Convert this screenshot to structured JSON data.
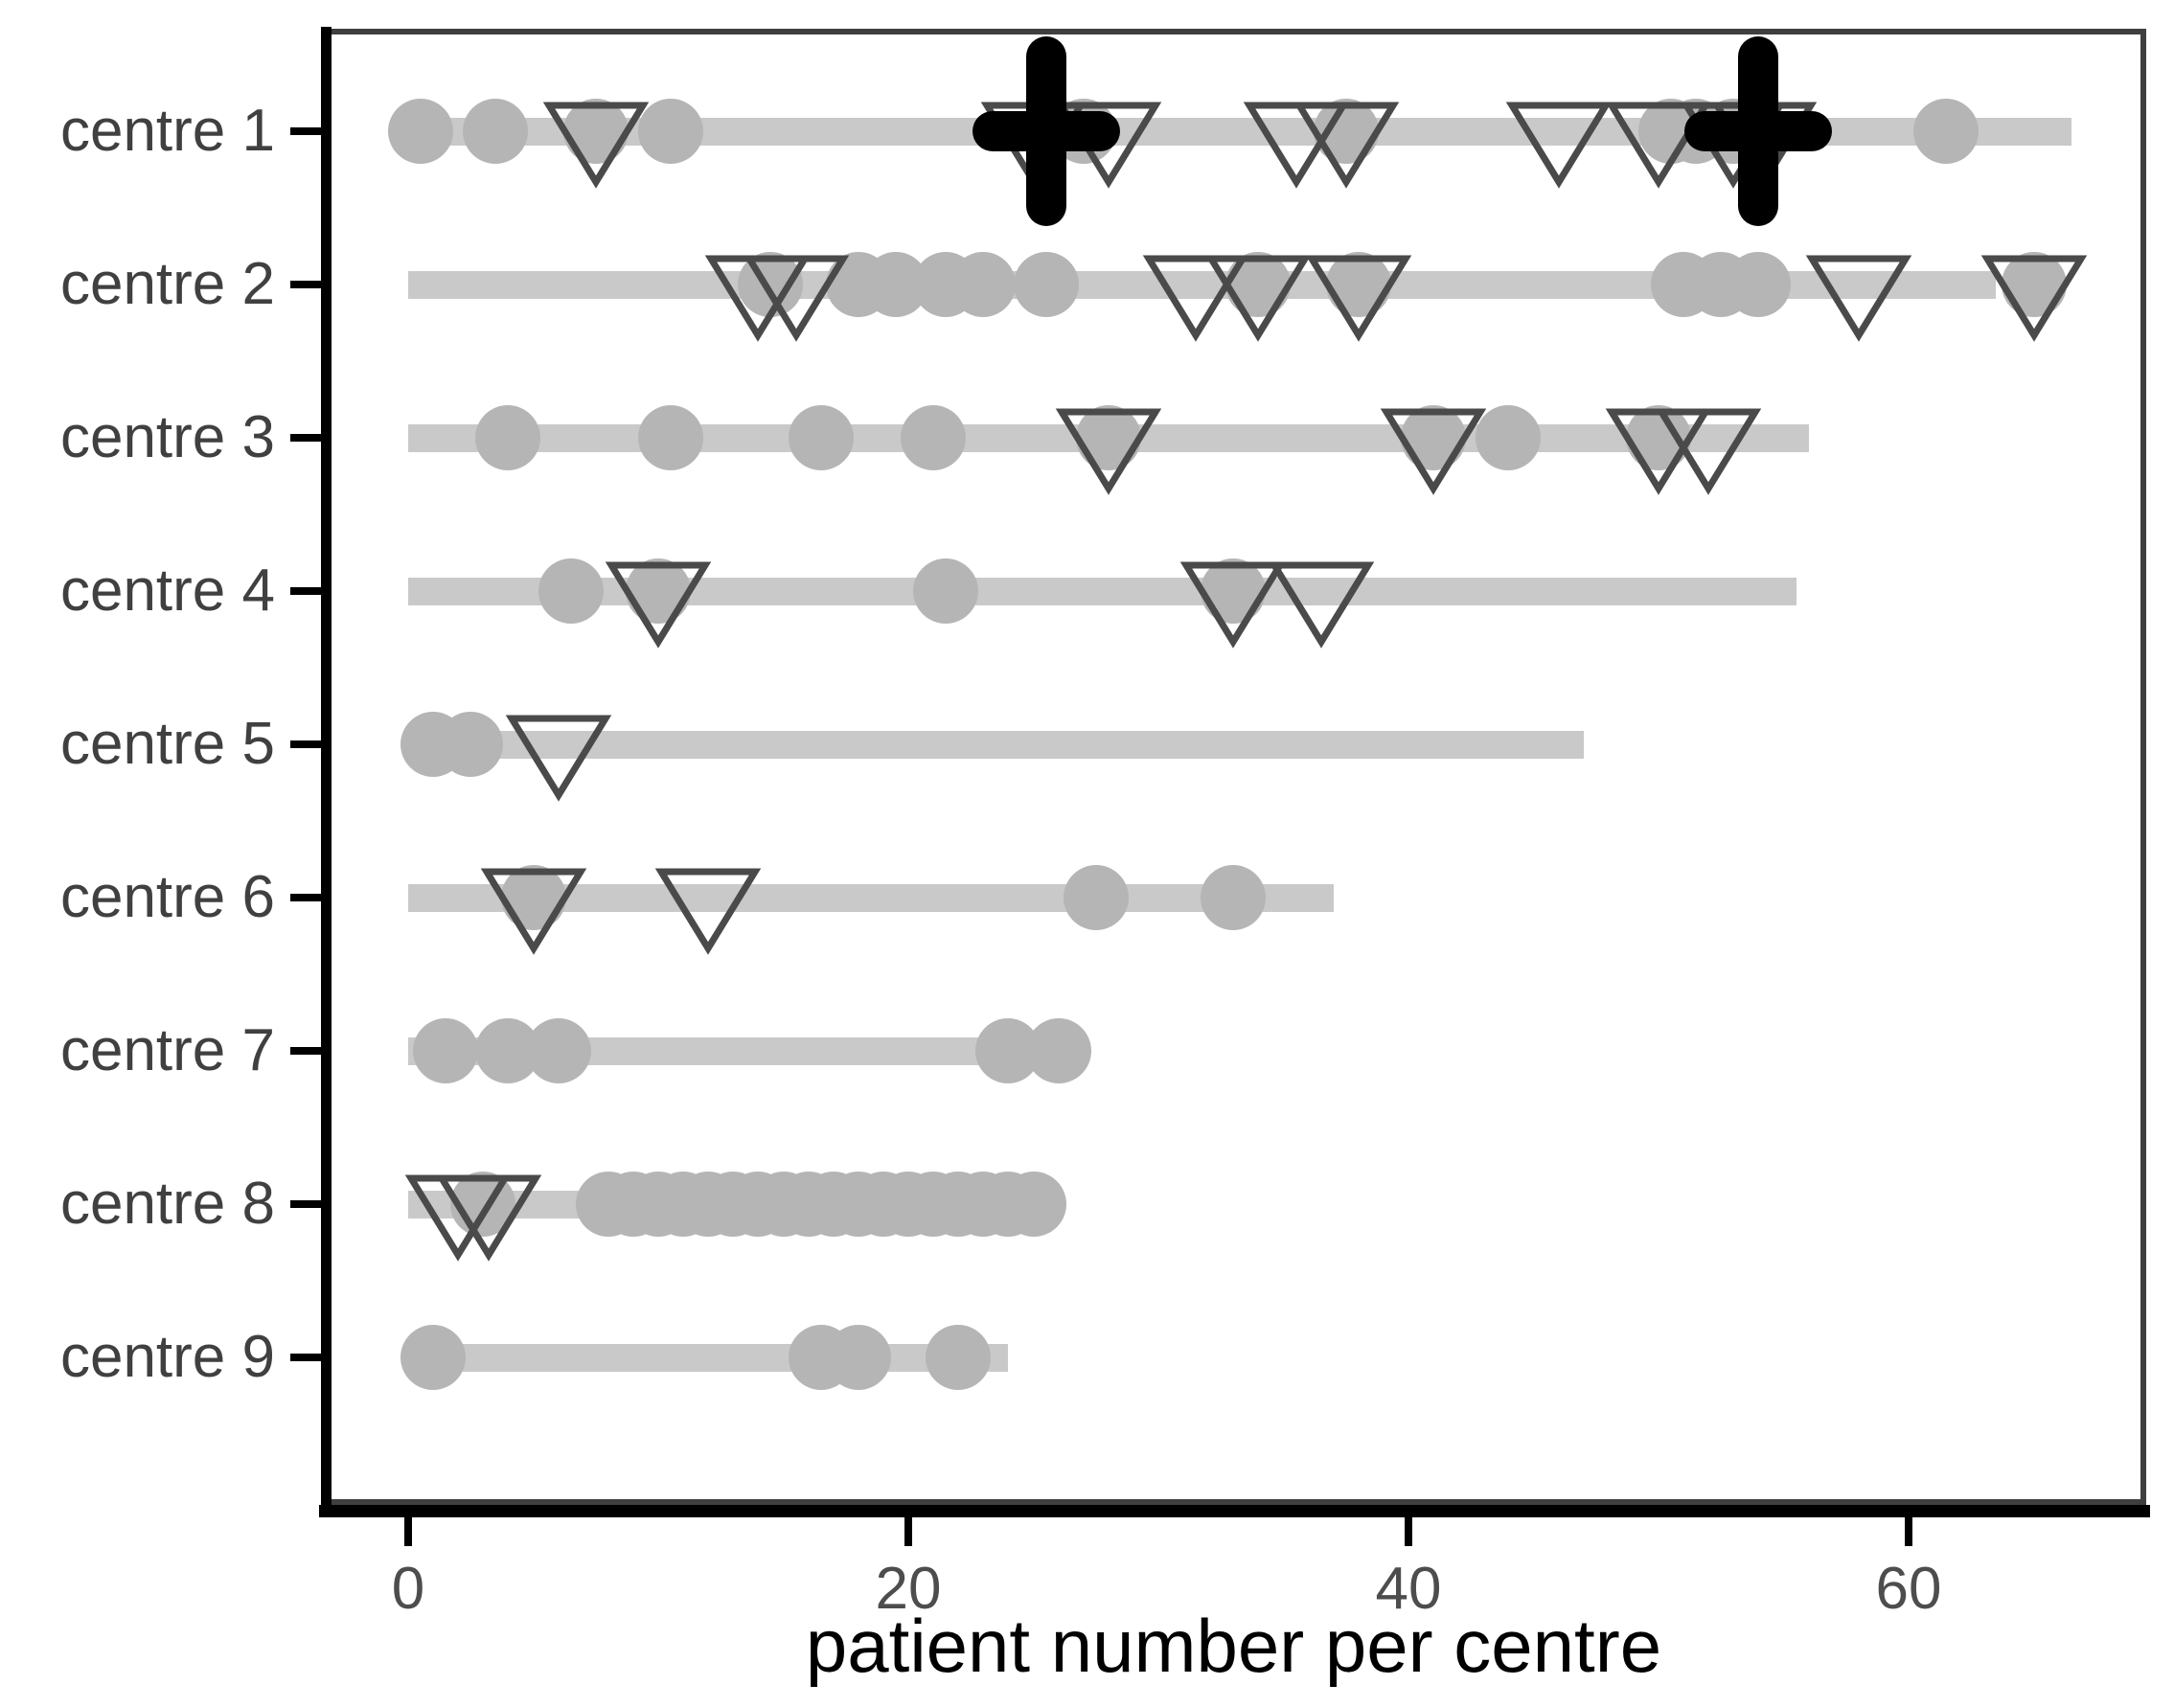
{
  "chart_data": {
    "type": "scatter",
    "subtype": "range-dot-plot",
    "title": "",
    "xlabel": "patient number per centre",
    "ylabel": "",
    "xlim": [
      -3.5,
      69.5
    ],
    "x_ticks": [
      0,
      20,
      40,
      60
    ],
    "grid": "off",
    "legend": "none",
    "categories": [
      "centre 1",
      "centre 2",
      "centre 3",
      "centre 4",
      "centre 5",
      "centre 6",
      "centre 7",
      "centre 8",
      "centre 9"
    ],
    "rows": [
      {
        "label": "centre 1",
        "line": [
          0.5,
          66.5
        ],
        "circles": [
          0.5,
          3.5,
          7.5,
          10.5,
          27,
          37.5,
          50.5,
          51.5,
          53,
          61.5
        ],
        "triangles": [
          7.5,
          25,
          28,
          35.5,
          37.5,
          46,
          50,
          53,
          54.2
        ],
        "plus": [
          25.5,
          54
        ]
      },
      {
        "label": "centre 2",
        "line": [
          0,
          63.5
        ],
        "circles": [
          14.5,
          18,
          19.5,
          21.5,
          23,
          25.5,
          34,
          38,
          51,
          52.5,
          54,
          65
        ],
        "triangles": [
          14,
          15.5,
          31.5,
          34,
          38,
          58,
          65
        ],
        "plus": []
      },
      {
        "label": "centre 3",
        "line": [
          0,
          56
        ],
        "circles": [
          4,
          10.5,
          16.5,
          21,
          28,
          41,
          44,
          50
        ],
        "triangles": [
          28,
          41,
          50,
          52
        ],
        "plus": []
      },
      {
        "label": "centre 4",
        "line": [
          0,
          55.5
        ],
        "circles": [
          6.5,
          10,
          21.5,
          33
        ],
        "triangles": [
          10,
          33,
          36.5
        ],
        "plus": []
      },
      {
        "label": "centre 5",
        "line": [
          0,
          47
        ],
        "circles": [
          1,
          2.5
        ],
        "triangles": [
          6
        ],
        "plus": []
      },
      {
        "label": "centre 6",
        "line": [
          0,
          37
        ],
        "circles": [
          5,
          27.5,
          33
        ],
        "triangles": [
          5,
          12
        ],
        "plus": []
      },
      {
        "label": "centre 7",
        "line": [
          0,
          26
        ],
        "circles": [
          1.5,
          4,
          6,
          24,
          26
        ],
        "triangles": [],
        "plus": []
      },
      {
        "label": "centre 8",
        "line": [
          0,
          25
        ],
        "circles": [
          3,
          8,
          9,
          10,
          11,
          12,
          13,
          14,
          15,
          16,
          17,
          18,
          19,
          20,
          21,
          22,
          23,
          24,
          25
        ],
        "triangles": [
          2,
          3.2
        ],
        "plus": []
      },
      {
        "label": "centre 9",
        "line": [
          1,
          24
        ],
        "circles": [
          1,
          16.5,
          18,
          22
        ],
        "triangles": [],
        "plus": []
      }
    ],
    "markers": {
      "circle": "gray-filled-dot",
      "triangle": "open-downward-triangle",
      "plus": "black-plus-cross"
    },
    "colors": {
      "circle_fill": "#b5b5b5",
      "range_line": "#c9c9c9",
      "triangle_stroke": "#4a4a4a",
      "plus": "#000000",
      "axis_line": "#000000",
      "panel_border": "#3f3f3f",
      "tick_label": "#4d4d4d",
      "category_label": "#404040",
      "axis_title": "#000000"
    }
  },
  "axis": {
    "x_title": "patient number per centre",
    "x_tick_labels": [
      "0",
      "20",
      "40",
      "60"
    ]
  }
}
